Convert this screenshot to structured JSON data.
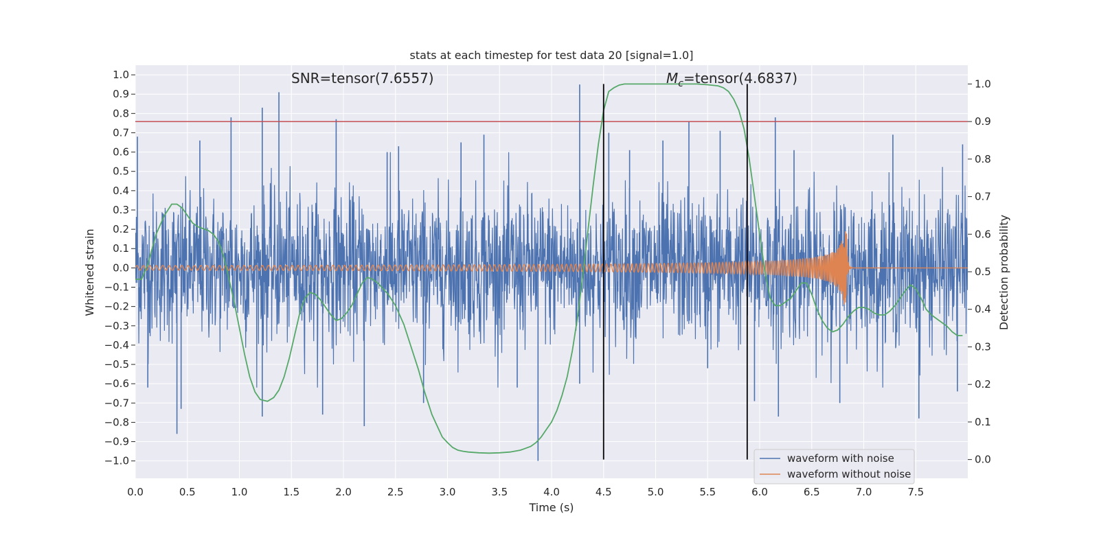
{
  "chart_data": {
    "type": "line",
    "title": "stats at each timestep for test data 20 [signal=1.0]",
    "xlabel": "Time (s)",
    "ylabel": "Whitened strain",
    "y2label": "Detection probability",
    "xlim": [
      0,
      8
    ],
    "ylim": [
      -1.09,
      1.05
    ],
    "y2lim": [
      -0.05,
      1.05
    ],
    "x_ticks": [
      "0.0",
      "0.5",
      "1.0",
      "1.5",
      "2.0",
      "2.5",
      "3.0",
      "3.5",
      "4.0",
      "4.5",
      "5.0",
      "5.5",
      "6.0",
      "6.5",
      "7.0",
      "7.5"
    ],
    "y_ticks": [
      "1.0",
      "0.9",
      "0.8",
      "0.7",
      "0.6",
      "0.5",
      "0.4",
      "0.3",
      "0.2",
      "0.1",
      "0.0",
      "−0.1",
      "−0.2",
      "−0.3",
      "−0.4",
      "−0.5",
      "−0.6",
      "−0.7",
      "−0.8",
      "−0.9",
      "−1.0"
    ],
    "y2_ticks": [
      "1.0",
      "0.9",
      "0.8",
      "0.7",
      "0.6",
      "0.5",
      "0.4",
      "0.3",
      "0.2",
      "0.1",
      "0.0"
    ],
    "grid": true,
    "legend": "lower-right",
    "annotations": {
      "snr": "SNR=tensor(7.6557)",
      "mc_symbol": "M",
      "mc_sub": "c",
      "mc_value": "=tensor(4.6837)"
    },
    "threshold_y2": 0.9,
    "vlines_x": [
      4.5,
      5.88
    ],
    "series": [
      {
        "name": "waveform with noise",
        "color": "#4c72b0",
        "noise_sd": 0.19,
        "spikes": [
          [
            0.02,
            0.68
          ],
          [
            0.4,
            -0.86
          ],
          [
            0.44,
            -0.73
          ],
          [
            0.62,
            0.66
          ],
          [
            0.92,
            0.78
          ],
          [
            1.22,
            0.83
          ],
          [
            1.38,
            0.91
          ],
          [
            1.22,
            -0.77
          ],
          [
            1.93,
            0.77
          ],
          [
            1.8,
            -0.76
          ],
          [
            2.2,
            -0.82
          ],
          [
            2.53,
            0.63
          ],
          [
            2.77,
            -0.7
          ],
          [
            3.13,
            0.65
          ],
          [
            3.35,
            0.69
          ],
          [
            3.87,
            -1.0
          ],
          [
            4.27,
            0.95
          ],
          [
            4.27,
            -0.6
          ],
          [
            4.5,
            0.85
          ],
          [
            4.5,
            -0.65
          ],
          [
            4.55,
            0.7
          ],
          [
            5.07,
            0.66
          ],
          [
            5.32,
            0.76
          ],
          [
            5.62,
            0.71
          ],
          [
            5.95,
            -0.69
          ],
          [
            6.15,
            0.78
          ],
          [
            6.18,
            -0.77
          ],
          [
            6.33,
            0.61
          ],
          [
            6.77,
            -0.7
          ],
          [
            7.28,
            0.69
          ],
          [
            7.53,
            -0.78
          ],
          [
            7.95,
            0.64
          ],
          [
            7.9,
            -0.64
          ],
          [
            0.12,
            -0.62
          ],
          [
            3.67,
            -0.62
          ],
          [
            4.75,
            0.61
          ],
          [
            5.5,
            -0.52
          ],
          [
            2.42,
            0.6
          ]
        ]
      },
      {
        "name": "waveform without noise",
        "color": "#dd8452",
        "merger_time": 6.84,
        "peak_amplitude": 0.19,
        "min_amplitude": -0.15
      },
      {
        "name": "detection probability",
        "color": "#55a868",
        "x": [
          0,
          0.06,
          0.12,
          0.2,
          0.28,
          0.35,
          0.4,
          0.45,
          0.5,
          0.55,
          0.6,
          0.65,
          0.7,
          0.75,
          0.8,
          0.85,
          0.9,
          0.95,
          1.0,
          1.05,
          1.1,
          1.15,
          1.2,
          1.27,
          1.33,
          1.38,
          1.43,
          1.48,
          1.53,
          1.58,
          1.63,
          1.68,
          1.73,
          1.78,
          1.83,
          1.88,
          1.93,
          1.98,
          2.03,
          2.08,
          2.13,
          2.18,
          2.23,
          2.28,
          2.33,
          2.38,
          2.43,
          2.5,
          2.58,
          2.65,
          2.72,
          2.78,
          2.85,
          2.9,
          2.95,
          3.0,
          3.05,
          3.1,
          3.15,
          3.2,
          3.3,
          3.4,
          3.5,
          3.6,
          3.7,
          3.8,
          3.85,
          3.9,
          3.95,
          4.0,
          4.05,
          4.1,
          4.15,
          4.2,
          4.25,
          4.3,
          4.35,
          4.4,
          4.45,
          4.5,
          4.55,
          4.6,
          4.65,
          4.7,
          4.8,
          4.9,
          5.0,
          5.2,
          5.4,
          5.5,
          5.6,
          5.65,
          5.7,
          5.75,
          5.8,
          5.85,
          5.9,
          5.95,
          6.0,
          6.05,
          6.1,
          6.15,
          6.2,
          6.3,
          6.35,
          6.4,
          6.45,
          6.5,
          6.55,
          6.6,
          6.65,
          6.7,
          6.75,
          6.8,
          6.85,
          6.9,
          6.95,
          7.0,
          7.05,
          7.1,
          7.15,
          7.2,
          7.25,
          7.3,
          7.35,
          7.4,
          7.45,
          7.5,
          7.55,
          7.6,
          7.65,
          7.7,
          7.75,
          7.8,
          7.85,
          7.9,
          7.95
        ],
        "y": [
          0.48,
          0.48,
          0.52,
          0.6,
          0.65,
          0.68,
          0.68,
          0.67,
          0.65,
          0.63,
          0.62,
          0.615,
          0.61,
          0.6,
          0.58,
          0.54,
          0.48,
          0.42,
          0.35,
          0.28,
          0.22,
          0.18,
          0.16,
          0.155,
          0.165,
          0.185,
          0.22,
          0.27,
          0.33,
          0.39,
          0.43,
          0.445,
          0.44,
          0.425,
          0.405,
          0.385,
          0.37,
          0.375,
          0.39,
          0.41,
          0.44,
          0.47,
          0.485,
          0.48,
          0.47,
          0.455,
          0.44,
          0.41,
          0.36,
          0.3,
          0.24,
          0.18,
          0.12,
          0.09,
          0.06,
          0.045,
          0.032,
          0.025,
          0.022,
          0.02,
          0.018,
          0.017,
          0.018,
          0.02,
          0.025,
          0.035,
          0.045,
          0.06,
          0.08,
          0.1,
          0.13,
          0.17,
          0.22,
          0.29,
          0.38,
          0.49,
          0.61,
          0.73,
          0.84,
          0.93,
          0.98,
          0.99,
          0.997,
          1.0,
          1.0,
          1.0,
          1.0,
          1.0,
          1.0,
          0.998,
          0.995,
          0.99,
          0.98,
          0.96,
          0.93,
          0.88,
          0.8,
          0.7,
          0.6,
          0.5,
          0.43,
          0.41,
          0.41,
          0.43,
          0.45,
          0.47,
          0.47,
          0.44,
          0.4,
          0.37,
          0.35,
          0.34,
          0.345,
          0.36,
          0.38,
          0.395,
          0.405,
          0.405,
          0.4,
          0.39,
          0.385,
          0.385,
          0.395,
          0.41,
          0.43,
          0.45,
          0.465,
          0.455,
          0.43,
          0.4,
          0.385,
          0.375,
          0.365,
          0.355,
          0.34,
          0.33,
          0.33
        ]
      },
      {
        "name": "",
        "color": "#c44e52"
      }
    ]
  }
}
